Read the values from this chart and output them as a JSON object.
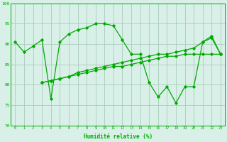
{
  "line1_x": [
    0,
    1,
    2,
    3,
    4,
    5,
    6,
    7,
    8,
    9,
    10,
    11,
    12,
    13,
    14,
    15,
    16,
    17,
    18,
    19,
    20,
    21,
    22,
    23
  ],
  "line1_y": [
    90.5,
    88.0,
    89.5,
    91.0,
    76.5,
    90.5,
    92.5,
    93.5,
    94.0,
    95.0,
    95.0,
    94.5,
    91.0,
    87.5,
    87.5,
    80.5,
    77.0,
    79.5,
    75.5,
    79.5,
    79.5,
    90.5,
    92.0,
    87.5
  ],
  "line2_x": [
    3,
    4,
    5,
    6,
    7,
    8,
    9,
    10,
    11,
    12,
    13,
    14,
    15,
    16,
    17,
    18,
    19,
    20,
    21,
    22,
    23
  ],
  "line2_y": [
    80.5,
    81.0,
    81.5,
    82.0,
    83.0,
    83.5,
    84.0,
    84.5,
    85.0,
    85.5,
    86.0,
    86.5,
    87.0,
    87.5,
    87.5,
    88.0,
    88.5,
    89.0,
    90.5,
    91.5,
    87.5
  ],
  "line3_x": [
    3,
    4,
    5,
    6,
    7,
    8,
    9,
    10,
    11,
    12,
    13,
    14,
    15,
    16,
    17,
    18,
    19,
    20,
    21,
    22,
    23
  ],
  "line3_y": [
    80.5,
    81.0,
    81.5,
    82.0,
    82.5,
    83.0,
    83.5,
    84.0,
    84.5,
    84.5,
    85.0,
    85.5,
    86.0,
    86.5,
    87.0,
    87.0,
    87.5,
    87.5,
    87.5,
    87.5,
    87.5
  ],
  "line_color": "#00aa00",
  "bg_color": "#d8f0e8",
  "grid_color": "#aaccbb",
  "xlabel": "Humidité relative (%)",
  "ylim": [
    70,
    100
  ],
  "xlim": [
    -0.5,
    23.5
  ],
  "yticks": [
    70,
    75,
    80,
    85,
    90,
    95,
    100
  ],
  "xticks": [
    0,
    1,
    2,
    3,
    4,
    5,
    6,
    7,
    8,
    9,
    10,
    11,
    12,
    13,
    14,
    15,
    16,
    17,
    18,
    19,
    20,
    21,
    22,
    23
  ]
}
